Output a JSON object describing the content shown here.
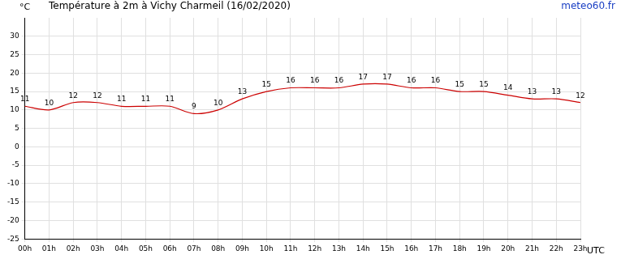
{
  "chart_data": {
    "type": "line",
    "title": "Température à 2m à Vichy Charmeil (16/02/2020)",
    "source": "meteo60.fr",
    "y_label": "°C",
    "x_label": "UTC",
    "categories": [
      "00h",
      "01h",
      "02h",
      "03h",
      "04h",
      "05h",
      "06h",
      "07h",
      "08h",
      "09h",
      "10h",
      "11h",
      "12h",
      "13h",
      "14h",
      "15h",
      "16h",
      "17h",
      "18h",
      "19h",
      "20h",
      "21h",
      "22h",
      "23h"
    ],
    "values": [
      11,
      10,
      12,
      12,
      11,
      11,
      11,
      9,
      10,
      13,
      15,
      16,
      16,
      16,
      17,
      17,
      16,
      16,
      15,
      15,
      14,
      13,
      13,
      12
    ],
    "color": "#cc0000",
    "ylim": [
      -25,
      35
    ],
    "yticks": [
      -25,
      -20,
      -15,
      -10,
      -5,
      0,
      5,
      10,
      15,
      20,
      25,
      30
    ],
    "grid": true,
    "data_labels": true
  }
}
